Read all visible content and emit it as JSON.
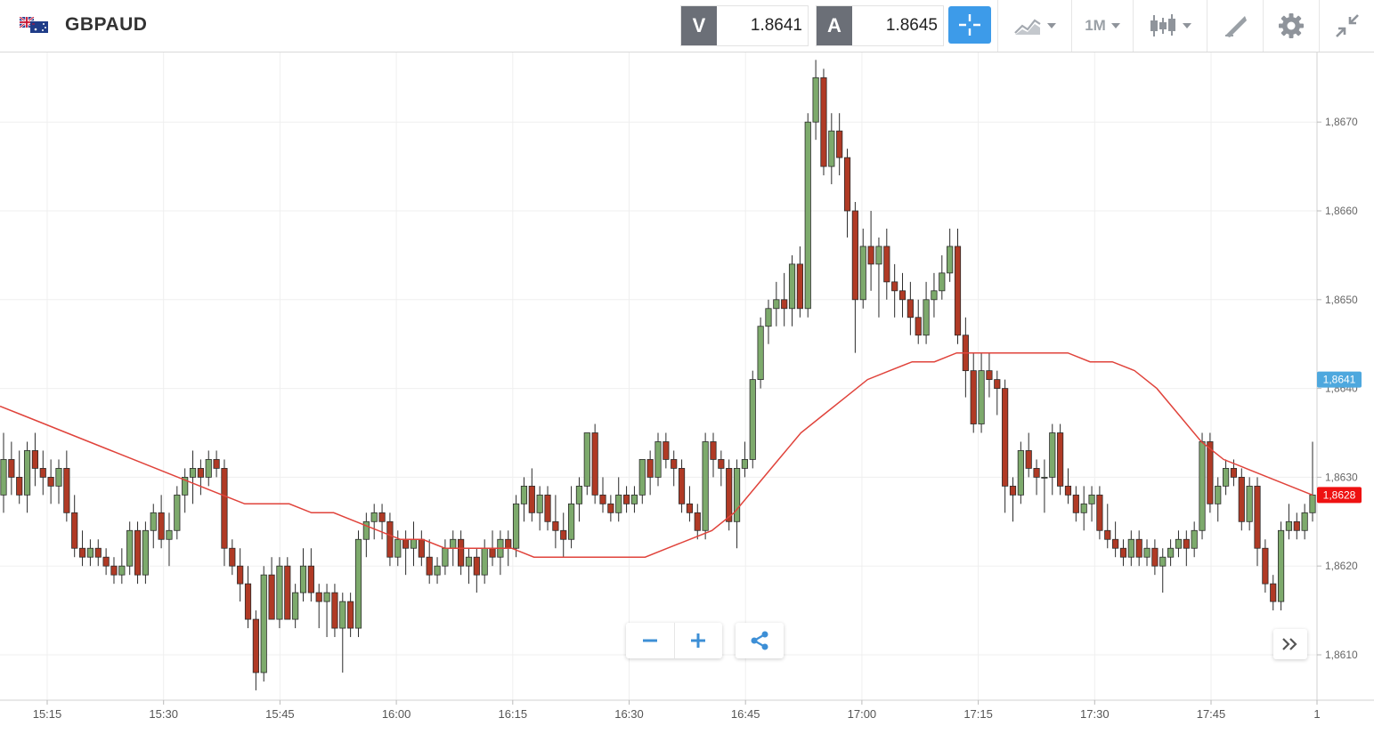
{
  "header": {
    "symbol": "GBPAUD",
    "sell_label": "V",
    "sell_price": "1.8641",
    "buy_label": "A",
    "buy_price": "1.8645",
    "timeframe": "1M"
  },
  "icons": [
    "flag-icon",
    "crosshair-icon",
    "chart-type-icon",
    "candles-icon",
    "drawing-icon",
    "gear-icon",
    "collapse-icon",
    "minus-icon",
    "plus-icon",
    "share-icon",
    "fast-forward-icon"
  ],
  "colors": {
    "up": "#7daa6c",
    "down": "#b03a25",
    "ma": "#e0433b",
    "bid_tag": "#4ea8de",
    "last_tag": "#ee1111",
    "accent": "#3d9be9"
  },
  "chart_data": {
    "type": "candlestick",
    "x_ticks": [
      "15:15",
      "15:30",
      "15:45",
      "16:00",
      "16:15",
      "16:30",
      "16:45",
      "17:00",
      "17:15",
      "17:30",
      "17:45",
      "1"
    ],
    "y_ticks": [
      "1,8610",
      "1,8620",
      "1,8630",
      "1,8640",
      "1,8650",
      "1,8660",
      "1,8670"
    ],
    "ylim": [
      1.8603,
      1.8677
    ],
    "grid": true,
    "bid_tag": "1,8641",
    "last_tag": "1,8628",
    "ohlc": [
      [
        1.8628,
        1.8635,
        1.8626,
        1.8632
      ],
      [
        1.8632,
        1.8634,
        1.8628,
        1.863
      ],
      [
        1.863,
        1.8633,
        1.8627,
        1.8628
      ],
      [
        1.8628,
        1.8634,
        1.8626,
        1.8633
      ],
      [
        1.8633,
        1.8635,
        1.8629,
        1.8631
      ],
      [
        1.8631,
        1.8633,
        1.8628,
        1.863
      ],
      [
        1.863,
        1.8632,
        1.8627,
        1.8629
      ],
      [
        1.8629,
        1.8632,
        1.8627,
        1.8631
      ],
      [
        1.8631,
        1.8633,
        1.8625,
        1.8626
      ],
      [
        1.8626,
        1.8628,
        1.8621,
        1.8622
      ],
      [
        1.8622,
        1.8624,
        1.862,
        1.8621
      ],
      [
        1.8621,
        1.8623,
        1.862,
        1.8622
      ],
      [
        1.8622,
        1.8623,
        1.862,
        1.8621
      ],
      [
        1.8621,
        1.8622,
        1.8619,
        1.862
      ],
      [
        1.862,
        1.8621,
        1.8618,
        1.8619
      ],
      [
        1.8619,
        1.8622,
        1.8618,
        1.862
      ],
      [
        1.862,
        1.8625,
        1.8619,
        1.8624
      ],
      [
        1.8624,
        1.8625,
        1.8618,
        1.8619
      ],
      [
        1.8619,
        1.8625,
        1.8618,
        1.8624
      ],
      [
        1.8624,
        1.8627,
        1.8622,
        1.8626
      ],
      [
        1.8626,
        1.8628,
        1.8622,
        1.8623
      ],
      [
        1.8623,
        1.8626,
        1.862,
        1.8624
      ],
      [
        1.8624,
        1.8629,
        1.8623,
        1.8628
      ],
      [
        1.8628,
        1.8631,
        1.8626,
        1.863
      ],
      [
        1.863,
        1.8633,
        1.8627,
        1.8631
      ],
      [
        1.8631,
        1.8632,
        1.8628,
        1.863
      ],
      [
        1.863,
        1.8633,
        1.8629,
        1.8632
      ],
      [
        1.8632,
        1.8633,
        1.863,
        1.8631
      ],
      [
        1.8631,
        1.8632,
        1.862,
        1.8622
      ],
      [
        1.8622,
        1.8623,
        1.8619,
        1.862
      ],
      [
        1.862,
        1.8622,
        1.8616,
        1.8618
      ],
      [
        1.8618,
        1.862,
        1.8613,
        1.8614
      ],
      [
        1.8614,
        1.8615,
        1.8606,
        1.8608
      ],
      [
        1.8608,
        1.862,
        1.8607,
        1.8619
      ],
      [
        1.8619,
        1.8621,
        1.8614,
        1.8614
      ],
      [
        1.8614,
        1.8621,
        1.8613,
        1.862
      ],
      [
        1.862,
        1.8621,
        1.8614,
        1.8614
      ],
      [
        1.8614,
        1.8618,
        1.8613,
        1.8617
      ],
      [
        1.8617,
        1.8622,
        1.8616,
        1.862
      ],
      [
        1.862,
        1.8622,
        1.8616,
        1.8617
      ],
      [
        1.8617,
        1.8618,
        1.8613,
        1.8616
      ],
      [
        1.8616,
        1.8618,
        1.8612,
        1.8617
      ],
      [
        1.8617,
        1.8618,
        1.8612,
        1.8613
      ],
      [
        1.8613,
        1.8617,
        1.8608,
        1.8616
      ],
      [
        1.8616,
        1.8617,
        1.8612,
        1.8613
      ],
      [
        1.8613,
        1.8624,
        1.8612,
        1.8623
      ],
      [
        1.8623,
        1.8626,
        1.8621,
        1.8625
      ],
      [
        1.8625,
        1.8627,
        1.8623,
        1.8626
      ],
      [
        1.8626,
        1.8627,
        1.8623,
        1.8625
      ],
      [
        1.8625,
        1.8626,
        1.862,
        1.8621
      ],
      [
        1.8621,
        1.8624,
        1.862,
        1.8623
      ],
      [
        1.8623,
        1.8624,
        1.8619,
        1.8622
      ],
      [
        1.8622,
        1.8625,
        1.862,
        1.8623
      ],
      [
        1.8623,
        1.8624,
        1.862,
        1.8621
      ],
      [
        1.8621,
        1.8623,
        1.8618,
        1.8619
      ],
      [
        1.8619,
        1.8621,
        1.8618,
        1.862
      ],
      [
        1.862,
        1.8623,
        1.8619,
        1.8622
      ],
      [
        1.8622,
        1.8624,
        1.862,
        1.8623
      ],
      [
        1.8623,
        1.8624,
        1.8619,
        1.862
      ],
      [
        1.862,
        1.8622,
        1.8618,
        1.8621
      ],
      [
        1.8621,
        1.8622,
        1.8617,
        1.8619
      ],
      [
        1.8619,
        1.8623,
        1.8618,
        1.8622
      ],
      [
        1.8622,
        1.8624,
        1.862,
        1.8621
      ],
      [
        1.8621,
        1.8624,
        1.8619,
        1.8623
      ],
      [
        1.8623,
        1.8624,
        1.862,
        1.8622
      ],
      [
        1.8622,
        1.8628,
        1.8621,
        1.8627
      ],
      [
        1.8627,
        1.863,
        1.8625,
        1.8629
      ],
      [
        1.8629,
        1.8631,
        1.8625,
        1.8626
      ],
      [
        1.8626,
        1.8629,
        1.8624,
        1.8628
      ],
      [
        1.8628,
        1.8629,
        1.8624,
        1.8625
      ],
      [
        1.8625,
        1.8628,
        1.8622,
        1.8624
      ],
      [
        1.8624,
        1.8626,
        1.8621,
        1.8623
      ],
      [
        1.8623,
        1.8629,
        1.8622,
        1.8627
      ],
      [
        1.8627,
        1.863,
        1.8625,
        1.8629
      ],
      [
        1.8629,
        1.8635,
        1.8628,
        1.8635
      ],
      [
        1.8635,
        1.8636,
        1.8627,
        1.8628
      ],
      [
        1.8628,
        1.863,
        1.8626,
        1.8627
      ],
      [
        1.8627,
        1.8628,
        1.8625,
        1.8626
      ],
      [
        1.8626,
        1.863,
        1.8625,
        1.8628
      ],
      [
        1.8628,
        1.8629,
        1.8626,
        1.8627
      ],
      [
        1.8627,
        1.8629,
        1.8626,
        1.8628
      ],
      [
        1.8628,
        1.8632,
        1.8627,
        1.8632
      ],
      [
        1.8632,
        1.8633,
        1.8628,
        1.863
      ],
      [
        1.863,
        1.8635,
        1.8629,
        1.8634
      ],
      [
        1.8634,
        1.8635,
        1.8631,
        1.8632
      ],
      [
        1.8632,
        1.8633,
        1.8629,
        1.8631
      ],
      [
        1.8631,
        1.8632,
        1.8626,
        1.8627
      ],
      [
        1.8627,
        1.8629,
        1.8625,
        1.8626
      ],
      [
        1.8626,
        1.8627,
        1.8623,
        1.8624
      ],
      [
        1.8624,
        1.8635,
        1.8623,
        1.8634
      ],
      [
        1.8634,
        1.8635,
        1.863,
        1.8632
      ],
      [
        1.8632,
        1.8633,
        1.8629,
        1.8631
      ],
      [
        1.8631,
        1.8632,
        1.8624,
        1.8625
      ],
      [
        1.8625,
        1.8632,
        1.8622,
        1.8631
      ],
      [
        1.8631,
        1.8634,
        1.863,
        1.8632
      ],
      [
        1.8632,
        1.8642,
        1.8631,
        1.8641
      ],
      [
        1.8641,
        1.8648,
        1.864,
        1.8647
      ],
      [
        1.8647,
        1.865,
        1.8645,
        1.8649
      ],
      [
        1.8649,
        1.8652,
        1.8647,
        1.865
      ],
      [
        1.865,
        1.8653,
        1.8647,
        1.8649
      ],
      [
        1.8649,
        1.8655,
        1.8647,
        1.8654
      ],
      [
        1.8654,
        1.8656,
        1.8648,
        1.8649
      ],
      [
        1.8649,
        1.8671,
        1.8648,
        1.867
      ],
      [
        1.867,
        1.8677,
        1.8668,
        1.8675
      ],
      [
        1.8675,
        1.8676,
        1.8664,
        1.8665
      ],
      [
        1.8665,
        1.8671,
        1.8663,
        1.8669
      ],
      [
        1.8669,
        1.8671,
        1.8664,
        1.8666
      ],
      [
        1.8666,
        1.8667,
        1.8657,
        1.866
      ],
      [
        1.866,
        1.8661,
        1.8644,
        1.865
      ],
      [
        1.865,
        1.8658,
        1.8649,
        1.8656
      ],
      [
        1.8656,
        1.866,
        1.8651,
        1.8654
      ],
      [
        1.8654,
        1.8657,
        1.8648,
        1.8656
      ],
      [
        1.8656,
        1.8658,
        1.865,
        1.8652
      ],
      [
        1.8652,
        1.8654,
        1.8648,
        1.8651
      ],
      [
        1.8651,
        1.8653,
        1.8648,
        1.865
      ],
      [
        1.865,
        1.8652,
        1.8646,
        1.8648
      ],
      [
        1.8648,
        1.865,
        1.8645,
        1.8646
      ],
      [
        1.8646,
        1.8652,
        1.8645,
        1.865
      ],
      [
        1.865,
        1.8653,
        1.8648,
        1.8651
      ],
      [
        1.8651,
        1.8655,
        1.865,
        1.8653
      ],
      [
        1.8653,
        1.8658,
        1.8652,
        1.8656
      ],
      [
        1.8656,
        1.8658,
        1.8645,
        1.8646
      ],
      [
        1.8646,
        1.8648,
        1.8639,
        1.8642
      ],
      [
        1.8642,
        1.8644,
        1.8635,
        1.8636
      ],
      [
        1.8636,
        1.8644,
        1.8635,
        1.8642
      ],
      [
        1.8642,
        1.8644,
        1.8639,
        1.8641
      ],
      [
        1.8641,
        1.8642,
        1.8637,
        1.864
      ],
      [
        1.864,
        1.8641,
        1.8626,
        1.8629
      ],
      [
        1.8629,
        1.863,
        1.8625,
        1.8628
      ],
      [
        1.8628,
        1.8634,
        1.8627,
        1.8633
      ],
      [
        1.8633,
        1.8635,
        1.863,
        1.8631
      ],
      [
        1.8631,
        1.8632,
        1.8628,
        1.863
      ],
      [
        1.863,
        1.8632,
        1.8626,
        1.863
      ],
      [
        1.863,
        1.8636,
        1.8628,
        1.8635
      ],
      [
        1.8635,
        1.8636,
        1.8628,
        1.8629
      ],
      [
        1.8629,
        1.8631,
        1.8627,
        1.8628
      ],
      [
        1.8628,
        1.8629,
        1.8625,
        1.8626
      ],
      [
        1.8626,
        1.8629,
        1.8624,
        1.8627
      ],
      [
        1.8627,
        1.8629,
        1.8625,
        1.8628
      ],
      [
        1.8628,
        1.8629,
        1.8623,
        1.8624
      ],
      [
        1.8624,
        1.8627,
        1.8622,
        1.8623
      ],
      [
        1.8623,
        1.8625,
        1.8621,
        1.8622
      ],
      [
        1.8622,
        1.8623,
        1.862,
        1.8621
      ],
      [
        1.8621,
        1.8624,
        1.862,
        1.8623
      ],
      [
        1.8623,
        1.8624,
        1.862,
        1.8621
      ],
      [
        1.8621,
        1.8623,
        1.862,
        1.8622
      ],
      [
        1.8622,
        1.8623,
        1.8619,
        1.862
      ],
      [
        1.862,
        1.8622,
        1.8617,
        1.8621
      ],
      [
        1.8621,
        1.8623,
        1.862,
        1.8622
      ],
      [
        1.8622,
        1.8624,
        1.8621,
        1.8623
      ],
      [
        1.8623,
        1.8624,
        1.862,
        1.8622
      ],
      [
        1.8622,
        1.8625,
        1.8621,
        1.8624
      ],
      [
        1.8624,
        1.8635,
        1.8623,
        1.8634
      ],
      [
        1.8634,
        1.8635,
        1.8626,
        1.8627
      ],
      [
        1.8627,
        1.863,
        1.8625,
        1.8629
      ],
      [
        1.8629,
        1.8632,
        1.8628,
        1.8631
      ],
      [
        1.8631,
        1.8632,
        1.8629,
        1.863
      ],
      [
        1.863,
        1.8631,
        1.8624,
        1.8625
      ],
      [
        1.8625,
        1.863,
        1.8624,
        1.8629
      ],
      [
        1.8629,
        1.863,
        1.862,
        1.8622
      ],
      [
        1.8622,
        1.8623,
        1.8617,
        1.8618
      ],
      [
        1.8618,
        1.8619,
        1.8615,
        1.8616
      ],
      [
        1.8616,
        1.8625,
        1.8615,
        1.8624
      ],
      [
        1.8624,
        1.8627,
        1.8623,
        1.8625
      ],
      [
        1.8625,
        1.8626,
        1.8623,
        1.8624
      ],
      [
        1.8624,
        1.8627,
        1.8623,
        1.8626
      ],
      [
        1.8626,
        1.8634,
        1.8625,
        1.8628
      ]
    ],
    "ma_line": [
      1.8638,
      1.8637,
      1.8636,
      1.8635,
      1.8634,
      1.8633,
      1.8632,
      1.8631,
      1.863,
      1.8629,
      1.8628,
      1.8627,
      1.8627,
      1.8627,
      1.8626,
      1.8626,
      1.8625,
      1.8624,
      1.8623,
      1.8623,
      1.8622,
      1.8622,
      1.8622,
      1.8622,
      1.8621,
      1.8621,
      1.8621,
      1.8621,
      1.8621,
      1.8621,
      1.8622,
      1.8623,
      1.8624,
      1.8626,
      1.8629,
      1.8632,
      1.8635,
      1.8637,
      1.8639,
      1.8641,
      1.8642,
      1.8643,
      1.8643,
      1.8644,
      1.8644,
      1.8644,
      1.8644,
      1.8644,
      1.8644,
      1.8643,
      1.8643,
      1.8642,
      1.864,
      1.8637,
      1.8634,
      1.8632,
      1.8631,
      1.863,
      1.8629,
      1.8628
    ]
  }
}
